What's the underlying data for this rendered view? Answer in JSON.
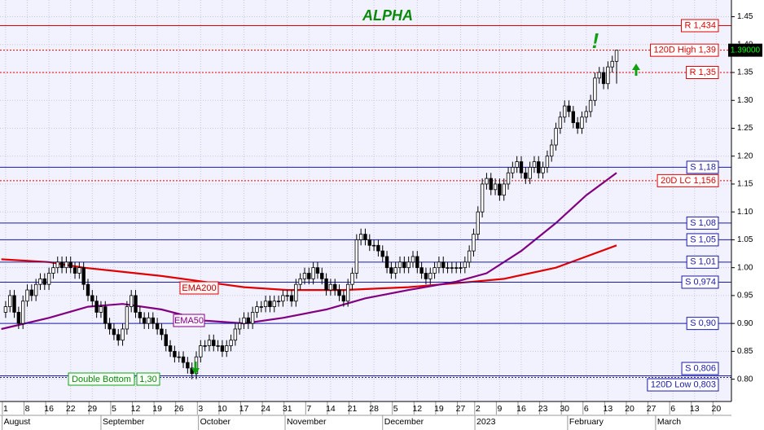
{
  "chart_data": {
    "type": "candlestick",
    "title": "ALPHA",
    "x": [
      0,
      1,
      2,
      3,
      4,
      5,
      6,
      7,
      8,
      9,
      10,
      11,
      12,
      13,
      14,
      15,
      16,
      17,
      18,
      19,
      20,
      21,
      22,
      23,
      24,
      25,
      26,
      27,
      28,
      29,
      30,
      31,
      32,
      33,
      34,
      35,
      36,
      37,
      38,
      39,
      40,
      41,
      42,
      43,
      44,
      45,
      46,
      47,
      48,
      49,
      50,
      51,
      52,
      53,
      54,
      55,
      56,
      57,
      58,
      59,
      60,
      61,
      62,
      63,
      64,
      65,
      66,
      67,
      68,
      69,
      70,
      71,
      72,
      73,
      74,
      75,
      76,
      77,
      78,
      79,
      80,
      81,
      82,
      83,
      84,
      85,
      86,
      87,
      88,
      89,
      90,
      91,
      92,
      93,
      94,
      95,
      96,
      97,
      98,
      99,
      100,
      101,
      102,
      103,
      104,
      105,
      106,
      107,
      108,
      109,
      110,
      111,
      112,
      113,
      114,
      115,
      116,
      117,
      118,
      119,
      120,
      121,
      122,
      123,
      124,
      125,
      126,
      127,
      128,
      129,
      130,
      131,
      132,
      133,
      134,
      135,
      136,
      137,
      138,
      139,
      140,
      141
    ],
    "open": [
      0.92,
      0.93,
      0.95,
      0.92,
      0.9,
      0.94,
      0.96,
      0.95,
      0.97,
      0.98,
      0.97,
      0.99,
      1.0,
      1.01,
      1.0,
      1.01,
      1.0,
      0.99,
      1.0,
      0.97,
      0.95,
      0.94,
      0.92,
      0.93,
      0.9,
      0.89,
      0.88,
      0.87,
      0.89,
      0.93,
      0.95,
      0.92,
      0.91,
      0.9,
      0.91,
      0.9,
      0.89,
      0.88,
      0.86,
      0.85,
      0.84,
      0.84,
      0.83,
      0.82,
      0.81,
      0.84,
      0.86,
      0.86,
      0.87,
      0.86,
      0.86,
      0.85,
      0.86,
      0.87,
      0.89,
      0.9,
      0.91,
      0.9,
      0.92,
      0.93,
      0.93,
      0.94,
      0.93,
      0.94,
      0.94,
      0.95,
      0.95,
      0.94,
      0.97,
      0.98,
      0.99,
      0.98,
      1.0,
      0.99,
      0.98,
      0.96,
      0.97,
      0.96,
      0.95,
      0.94,
      0.97,
      0.99,
      1.05,
      1.06,
      1.05,
      1.04,
      1.04,
      1.03,
      1.02,
      1.0,
      0.99,
      1.0,
      1.01,
      1.0,
      1.01,
      1.02,
      1.0,
      0.99,
      0.98,
      0.99,
      1.0,
      1.01,
      1.0,
      1.0,
      1.0,
      1.0,
      1.0,
      1.01,
      1.03,
      1.06,
      1.1,
      1.15,
      1.16,
      1.14,
      1.15,
      1.13,
      1.15,
      1.17,
      1.18,
      1.19,
      1.17,
      1.16,
      1.18,
      1.19,
      1.17,
      1.18,
      1.2,
      1.22,
      1.25,
      1.27,
      1.29,
      1.28,
      1.26,
      1.25,
      1.27,
      1.28,
      1.3,
      1.34,
      1.35,
      1.33,
      1.36,
      1.37
    ],
    "high": [
      0.94,
      0.96,
      0.96,
      0.93,
      0.95,
      0.97,
      0.97,
      0.98,
      0.99,
      0.99,
      1.0,
      1.01,
      1.02,
      1.02,
      1.02,
      1.02,
      1.01,
      1.01,
      1.01,
      0.98,
      0.96,
      0.95,
      0.94,
      0.94,
      0.91,
      0.9,
      0.89,
      0.9,
      0.94,
      0.96,
      0.96,
      0.93,
      0.92,
      0.92,
      0.92,
      0.91,
      0.9,
      0.89,
      0.87,
      0.86,
      0.85,
      0.85,
      0.84,
      0.83,
      0.85,
      0.87,
      0.87,
      0.88,
      0.88,
      0.87,
      0.87,
      0.87,
      0.88,
      0.9,
      0.91,
      0.92,
      0.92,
      0.93,
      0.94,
      0.94,
      0.95,
      0.95,
      0.95,
      0.95,
      0.96,
      0.96,
      0.96,
      0.98,
      0.99,
      1.0,
      1.0,
      1.01,
      1.01,
      1.0,
      0.99,
      0.98,
      0.98,
      0.97,
      0.96,
      0.98,
      1.0,
      1.06,
      1.07,
      1.07,
      1.06,
      1.05,
      1.05,
      1.04,
      1.03,
      1.01,
      1.01,
      1.02,
      1.02,
      1.02,
      1.03,
      1.03,
      1.01,
      1.0,
      1.0,
      1.01,
      1.02,
      1.02,
      1.01,
      1.01,
      1.01,
      1.01,
      1.02,
      1.04,
      1.07,
      1.11,
      1.16,
      1.17,
      1.17,
      1.16,
      1.16,
      1.16,
      1.18,
      1.19,
      1.2,
      1.2,
      1.18,
      1.19,
      1.2,
      1.2,
      1.19,
      1.21,
      1.23,
      1.26,
      1.28,
      1.3,
      1.3,
      1.29,
      1.27,
      1.28,
      1.29,
      1.31,
      1.35,
      1.36,
      1.36,
      1.37,
      1.38,
      1.39
    ],
    "low": [
      0.91,
      0.92,
      0.91,
      0.89,
      0.89,
      0.93,
      0.94,
      0.94,
      0.96,
      0.96,
      0.96,
      0.98,
      0.99,
      0.99,
      0.99,
      0.99,
      0.98,
      0.98,
      0.96,
      0.94,
      0.93,
      0.91,
      0.91,
      0.89,
      0.88,
      0.87,
      0.86,
      0.86,
      0.88,
      0.92,
      0.91,
      0.9,
      0.89,
      0.89,
      0.89,
      0.88,
      0.87,
      0.85,
      0.84,
      0.83,
      0.83,
      0.82,
      0.81,
      0.8,
      0.8,
      0.83,
      0.85,
      0.85,
      0.85,
      0.85,
      0.84,
      0.84,
      0.85,
      0.86,
      0.88,
      0.89,
      0.89,
      0.89,
      0.91,
      0.92,
      0.92,
      0.92,
      0.92,
      0.93,
      0.93,
      0.94,
      0.93,
      0.93,
      0.96,
      0.97,
      0.97,
      0.97,
      0.98,
      0.97,
      0.95,
      0.95,
      0.95,
      0.94,
      0.93,
      0.93,
      0.96,
      0.98,
      1.04,
      1.04,
      1.03,
      1.03,
      1.02,
      1.01,
      0.99,
      0.98,
      0.98,
      0.99,
      0.99,
      0.99,
      1.0,
      0.99,
      0.98,
      0.97,
      0.97,
      0.98,
      0.99,
      0.99,
      0.99,
      0.99,
      0.99,
      0.99,
      0.99,
      1.0,
      1.02,
      1.05,
      1.09,
      1.14,
      1.13,
      1.13,
      1.12,
      1.12,
      1.14,
      1.16,
      1.17,
      1.16,
      1.15,
      1.15,
      1.17,
      1.16,
      1.16,
      1.17,
      1.19,
      1.21,
      1.24,
      1.26,
      1.27,
      1.25,
      1.24,
      1.24,
      1.26,
      1.27,
      1.29,
      1.33,
      1.32,
      1.32,
      1.35,
      1.33
    ],
    "close": [
      0.93,
      0.95,
      0.92,
      0.9,
      0.94,
      0.96,
      0.95,
      0.97,
      0.98,
      0.97,
      0.99,
      1.0,
      1.01,
      1.0,
      1.01,
      1.0,
      0.99,
      1.0,
      0.97,
      0.95,
      0.94,
      0.92,
      0.93,
      0.9,
      0.89,
      0.88,
      0.87,
      0.89,
      0.93,
      0.95,
      0.92,
      0.91,
      0.9,
      0.91,
      0.9,
      0.89,
      0.88,
      0.86,
      0.85,
      0.84,
      0.84,
      0.83,
      0.82,
      0.81,
      0.84,
      0.86,
      0.86,
      0.87,
      0.86,
      0.86,
      0.85,
      0.86,
      0.87,
      0.89,
      0.9,
      0.91,
      0.9,
      0.92,
      0.93,
      0.93,
      0.94,
      0.93,
      0.94,
      0.94,
      0.95,
      0.95,
      0.94,
      0.97,
      0.98,
      0.99,
      0.98,
      1.0,
      0.99,
      0.98,
      0.96,
      0.97,
      0.96,
      0.95,
      0.94,
      0.97,
      0.99,
      1.05,
      1.06,
      1.05,
      1.04,
      1.04,
      1.03,
      1.02,
      1.0,
      0.99,
      1.0,
      1.01,
      1.0,
      1.01,
      1.02,
      1.0,
      0.99,
      0.98,
      0.99,
      1.0,
      1.01,
      1.0,
      1.0,
      1.0,
      1.0,
      1.0,
      1.01,
      1.03,
      1.06,
      1.1,
      1.15,
      1.16,
      1.14,
      1.15,
      1.13,
      1.15,
      1.17,
      1.18,
      1.19,
      1.17,
      1.16,
      1.18,
      1.19,
      1.17,
      1.18,
      1.2,
      1.22,
      1.25,
      1.27,
      1.29,
      1.28,
      1.26,
      1.25,
      1.27,
      1.28,
      1.3,
      1.34,
      1.35,
      1.33,
      1.36,
      1.37,
      1.39
    ],
    "up_color": "#ffffff",
    "down_color": "#000000",
    "xlim": [
      -1.3,
      167.5
    ],
    "ylim": [
      0.76,
      1.48
    ],
    "grid": true,
    "xticks": [
      {
        "value": 0,
        "label": "1"
      },
      {
        "value": 5,
        "label": "8"
      },
      {
        "value": 10,
        "label": "16"
      },
      {
        "value": 15,
        "label": "22"
      },
      {
        "value": 20,
        "label": "29"
      },
      {
        "value": 25,
        "label": "5"
      },
      {
        "value": 30,
        "label": "12"
      },
      {
        "value": 35,
        "label": "19"
      },
      {
        "value": 40,
        "label": "26"
      },
      {
        "value": 45,
        "label": "3"
      },
      {
        "value": 50,
        "label": "10"
      },
      {
        "value": 55,
        "label": "17"
      },
      {
        "value": 60,
        "label": "24"
      },
      {
        "value": 65,
        "label": "31"
      },
      {
        "value": 70,
        "label": "7"
      },
      {
        "value": 75,
        "label": "14"
      },
      {
        "value": 80,
        "label": "21"
      },
      {
        "value": 85,
        "label": "28"
      },
      {
        "value": 90,
        "label": "5"
      },
      {
        "value": 95,
        "label": "12"
      },
      {
        "value": 100,
        "label": "19"
      },
      {
        "value": 105,
        "label": "27"
      },
      {
        "value": 109,
        "label": "2"
      },
      {
        "value": 114,
        "label": "9"
      },
      {
        "value": 119,
        "label": "16"
      },
      {
        "value": 124,
        "label": "23"
      },
      {
        "value": 129,
        "label": "30"
      },
      {
        "value": 134,
        "label": "6"
      },
      {
        "value": 139,
        "label": "13"
      },
      {
        "value": 144,
        "label": "20"
      },
      {
        "value": 149,
        "label": "27"
      },
      {
        "value": 154,
        "label": "6"
      },
      {
        "value": 159,
        "label": "13"
      },
      {
        "value": 164,
        "label": "20"
      }
    ],
    "month_ticks": [
      {
        "value": -0.8,
        "label": "August"
      },
      {
        "value": 22,
        "label": "September"
      },
      {
        "value": 44.5,
        "label": "October"
      },
      {
        "value": 64.5,
        "label": "November"
      },
      {
        "value": 87,
        "label": "December"
      },
      {
        "value": 108.3,
        "label": "2023"
      },
      {
        "value": 129.7,
        "label": "February"
      },
      {
        "value": 150,
        "label": "March"
      }
    ],
    "yticks": [
      {
        "value": 0.8,
        "label": "0.80"
      },
      0.85,
      {
        "value": 0.9,
        "label": "0.90"
      },
      0.95,
      {
        "value": 1.0,
        "label": "1.00"
      },
      1.05,
      {
        "value": 1.1,
        "label": "1.10"
      },
      1.15,
      {
        "value": 1.2,
        "label": "1.20"
      },
      1.25,
      {
        "value": 1.3,
        "label": "1.30"
      },
      1.35,
      {
        "value": 1.4,
        "label": "1.40"
      },
      1.45
    ],
    "overlays": [
      {
        "name": "EMA200",
        "color": "#e00000",
        "x": [
          -1,
          10,
          18,
          36,
          55,
          65,
          78,
          93,
          108,
          115,
          127,
          134,
          141
        ],
        "values": [
          1.015,
          1.01,
          1.0,
          0.985,
          0.965,
          0.96,
          0.96,
          0.965,
          0.975,
          0.98,
          1.0,
          1.02,
          1.04
        ]
      },
      {
        "name": "EMA50",
        "color": "#800080",
        "x": [
          -1,
          10,
          19,
          27,
          36,
          46,
          55,
          64,
          74,
          83,
          93,
          104,
          111,
          119,
          127,
          134,
          141
        ],
        "values": [
          0.89,
          0.91,
          0.93,
          0.935,
          0.925,
          0.905,
          0.9,
          0.91,
          0.925,
          0.945,
          0.96,
          0.975,
          0.99,
          1.03,
          1.08,
          1.13,
          1.17
        ]
      }
    ],
    "levels": [
      {
        "value": 1.434,
        "label": "R 1,434",
        "color": "#e00000",
        "style": "solid"
      },
      {
        "value": 1.39,
        "label": "120D High 1,39",
        "color": "#e00000",
        "style": "dotted"
      },
      {
        "value": 1.35,
        "label": "R 1,35",
        "color": "#e00000",
        "style": "dotted"
      },
      {
        "value": 1.18,
        "label": "S 1,18",
        "color": "#1a1aa8",
        "style": "solid"
      },
      {
        "value": 1.156,
        "label": "20D LC 1,156",
        "color": "#e00000",
        "style": "dotted"
      },
      {
        "value": 1.08,
        "label": "S 1,08",
        "color": "#1a1aa8",
        "style": "solid"
      },
      {
        "value": 1.05,
        "label": "S 1,05",
        "color": "#1a1aa8",
        "style": "solid"
      },
      {
        "value": 1.01,
        "label": "S 1,01",
        "color": "#1a1aa8",
        "style": "solid"
      },
      {
        "value": 0.974,
        "label": "S 0,974",
        "color": "#1a1aa8",
        "style": "solid"
      },
      {
        "value": 0.9,
        "label": "S 0,90",
        "color": "#1a1aa8",
        "style": "solid"
      },
      {
        "value": 0.806,
        "label": "S 0,806",
        "color": "#1a1aa8",
        "style": "solid"
      },
      {
        "value": 0.803,
        "label": "120D Low 0,803",
        "color": "#1a1aa8",
        "style": "dotted"
      }
    ],
    "last_price": {
      "value": 1.39,
      "label": "1.39000"
    },
    "annotations": {
      "double_bottom": "Double Bottom",
      "double_bottom_value": "1,30",
      "exclamation": "!"
    }
  }
}
